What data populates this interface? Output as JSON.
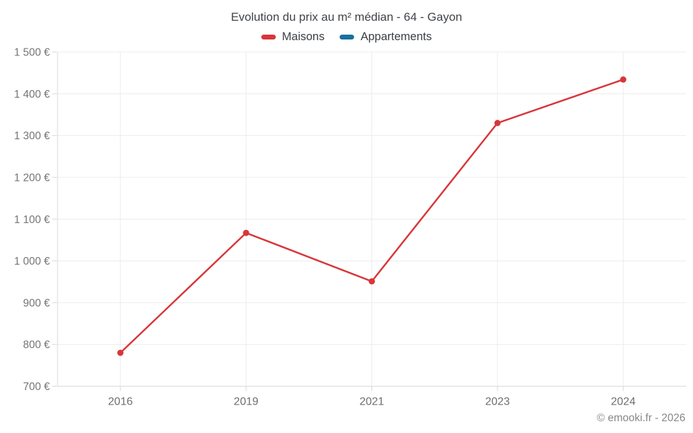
{
  "title": "Evolution du prix au m² médian - 64 - Gayon",
  "legend": [
    {
      "label": "Maisons",
      "color": "#d8363a"
    },
    {
      "label": "Appartements",
      "color": "#17719f"
    }
  ],
  "footer": "© emooki.fr - 2026",
  "chart_data": {
    "type": "line",
    "title": "Evolution du prix au m² médian - 64 - Gayon",
    "categories": [
      "2016",
      "2019",
      "2021",
      "2023",
      "2024"
    ],
    "series": [
      {
        "name": "Maisons",
        "color": "#d8363a",
        "values": [
          780,
          1067,
          951,
          1330,
          1434
        ]
      },
      {
        "name": "Appartements",
        "color": "#17719f",
        "values": []
      }
    ],
    "xlabel": "",
    "ylabel": "",
    "ylim": [
      700,
      1500
    ],
    "yticks": [
      700,
      800,
      900,
      1000,
      1100,
      1200,
      1300,
      1400,
      1500
    ],
    "ytick_labels": [
      "700 €",
      "800 €",
      "900 €",
      "1 000 €",
      "1 100 €",
      "1 200 €",
      "1 300 €",
      "1 400 €",
      "1 500 €"
    ],
    "grid": true,
    "legend_position": "top",
    "marker": "circle",
    "colors": {
      "gridline": "#ececec",
      "axis_line": "#d9d9d9",
      "tick_label": "#757575",
      "x_tick_label": "#6e6e6e"
    }
  }
}
